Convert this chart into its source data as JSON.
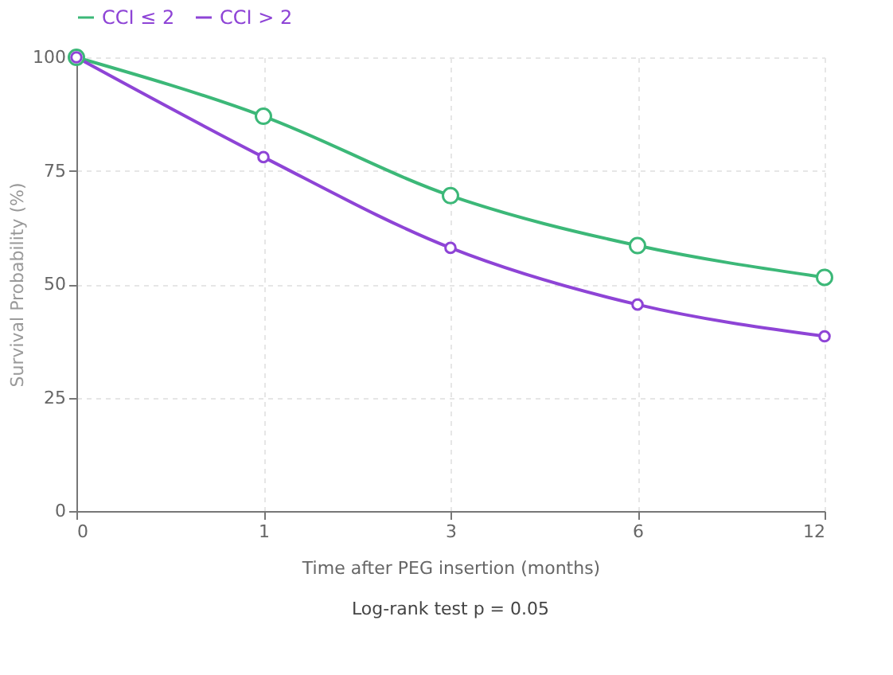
{
  "chart_data": {
    "type": "line",
    "categories": [
      "0",
      "1",
      "3",
      "6",
      "12"
    ],
    "series": [
      {
        "name": "CCI ≤ 2",
        "color": "#3cb878",
        "values": [
          100,
          87,
          69.5,
          58.5,
          51.5
        ]
      },
      {
        "name": "CCI > 2",
        "color": "#8e44d6",
        "values": [
          100,
          78,
          58,
          45.5,
          38.5
        ]
      }
    ],
    "xlabel": "Time after PEG insertion (months)",
    "ylabel": "Survival Probability (%)",
    "ylim": [
      0,
      100
    ],
    "yticks": [
      0,
      25,
      50,
      75,
      100
    ],
    "grid": true,
    "legend": "top",
    "marker": "circle",
    "line_style": "solid",
    "annotations": [
      "Log-rank test p = 0.05"
    ]
  }
}
